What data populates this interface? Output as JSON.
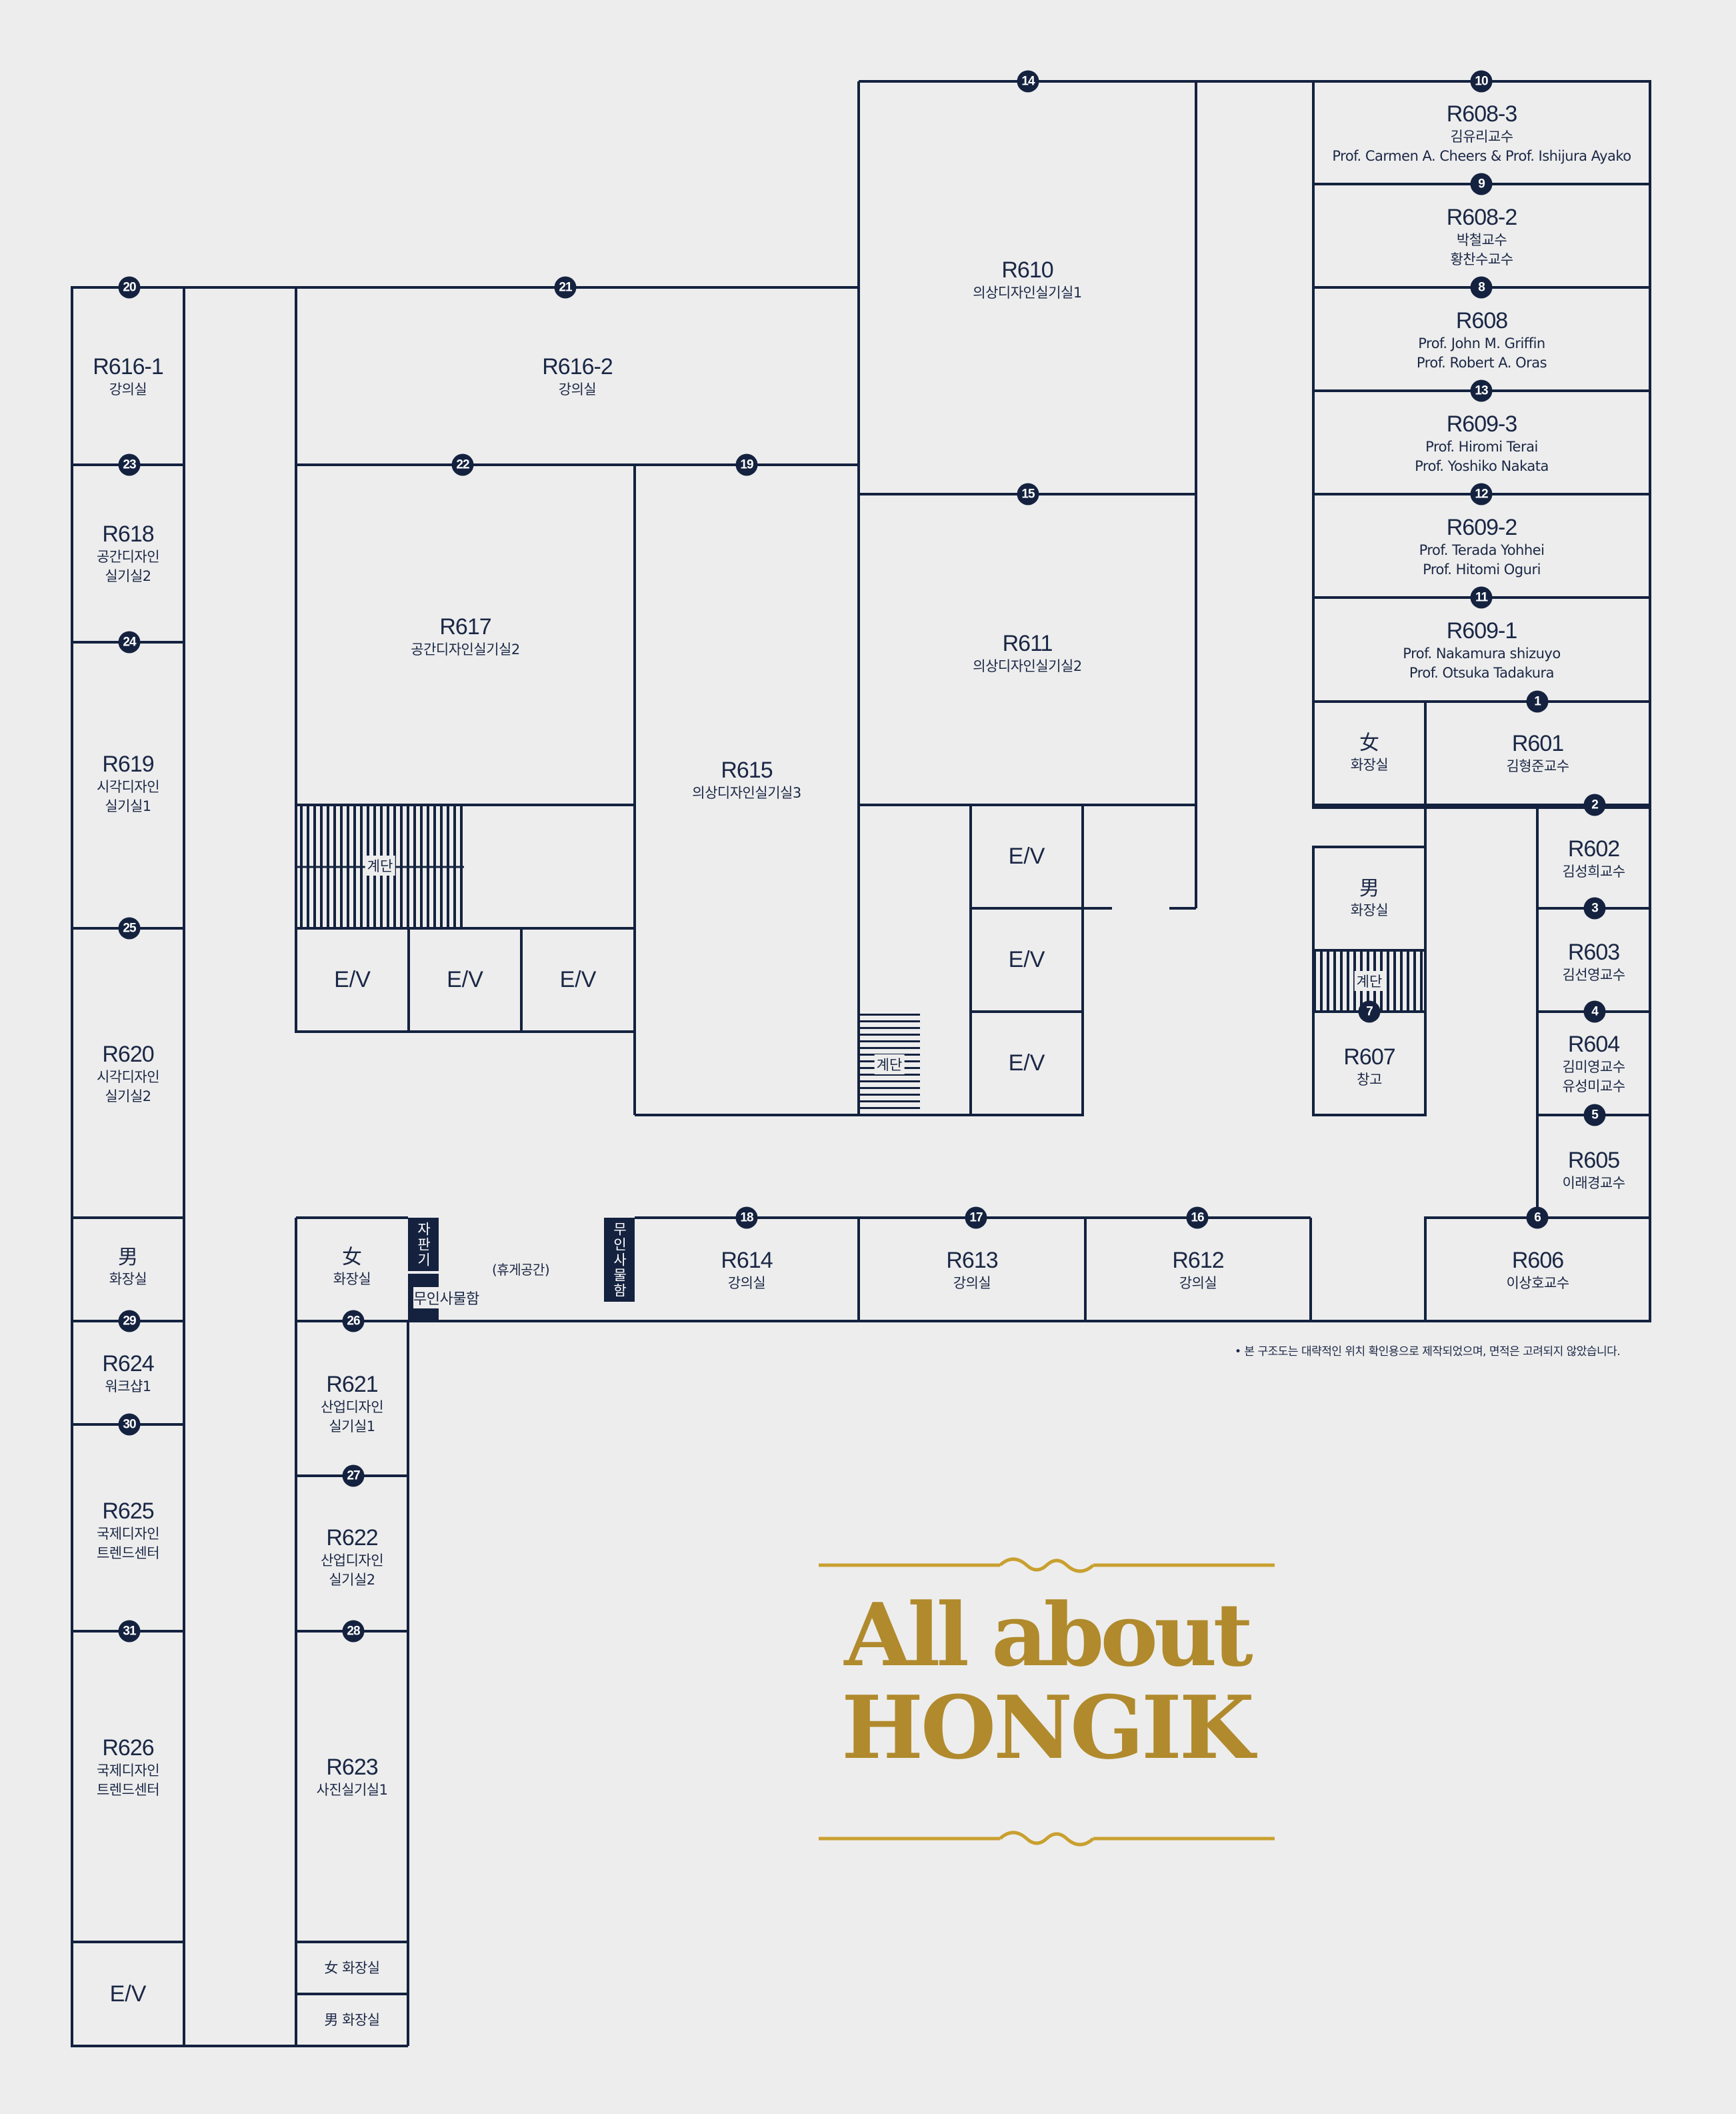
{
  "rooms": {
    "r608_3": {
      "code": "R608-3",
      "sub1": "김유리교수",
      "sub2": "Prof. Carmen A. Cheers & Prof. Ishijura Ayako"
    },
    "r608_2": {
      "code": "R608-2",
      "sub1": "박철교수",
      "sub2": "황찬수교수"
    },
    "r608": {
      "code": "R608",
      "sub1": "Prof. John M. Griffin",
      "sub2": "Prof. Robert A. Oras"
    },
    "r609_3": {
      "code": "R609-3",
      "sub1": "Prof. Hiromi Terai",
      "sub2": "Prof. Yoshiko Nakata"
    },
    "r609_2": {
      "code": "R609-2",
      "sub1": "Prof. Terada Yohhei",
      "sub2": "Prof. Hitomi Oguri"
    },
    "r609_1": {
      "code": "R609-1",
      "sub1": "Prof. Nakamura shizuyo",
      "sub2": "Prof. Otsuka Tadakura"
    },
    "r601": {
      "code": "R601",
      "sub1": "김형준교수"
    },
    "r602": {
      "code": "R602",
      "sub1": "김성희교수"
    },
    "r603": {
      "code": "R603",
      "sub1": "김선영교수"
    },
    "r604": {
      "code": "R604",
      "sub1": "김미영교수",
      "sub2": "유성미교수"
    },
    "r605": {
      "code": "R605",
      "sub1": "이래경교수"
    },
    "r606": {
      "code": "R606",
      "sub1": "이상호교수"
    },
    "r607": {
      "code": "R607",
      "sub1": "창고"
    },
    "r610": {
      "code": "R610",
      "sub1": "의상디자인실기실1"
    },
    "r611": {
      "code": "R611",
      "sub1": "의상디자인실기실2"
    },
    "r615": {
      "code": "R615",
      "sub1": "의상디자인실기실3"
    },
    "r616_1": {
      "code": "R616-1",
      "sub1": "강의실"
    },
    "r616_2": {
      "code": "R616-2",
      "sub1": "강의실"
    },
    "r617": {
      "code": "R617",
      "sub1": "공간디자인실기실2"
    },
    "r618": {
      "code": "R618",
      "sub1": "공간디자인",
      "sub2": "실기실2"
    },
    "r619": {
      "code": "R619",
      "sub1": "시각디자인",
      "sub2": "실기실1"
    },
    "r620": {
      "code": "R620",
      "sub1": "시각디자인",
      "sub2": "실기실2"
    },
    "r612": {
      "code": "R612",
      "sub1": "강의실"
    },
    "r613": {
      "code": "R613",
      "sub1": "강의실"
    },
    "r614": {
      "code": "R614",
      "sub1": "강의실"
    },
    "r621": {
      "code": "R621",
      "sub1": "산업디자인",
      "sub2": "실기실1"
    },
    "r622": {
      "code": "R622",
      "sub1": "산업디자인",
      "sub2": "실기실2"
    },
    "r623": {
      "code": "R623",
      "sub1": "사진실기실1"
    },
    "r624": {
      "code": "R624",
      "sub1": "워크샵1"
    },
    "r625": {
      "code": "R625",
      "sub1": "국제디자인",
      "sub2": "트렌드센터"
    },
    "r626": {
      "code": "R626",
      "sub1": "국제디자인",
      "sub2": "트렌드센터"
    }
  },
  "restrooms": {
    "female_right": {
      "symbol": "女",
      "label": "화장실"
    },
    "male_right": {
      "symbol": "男",
      "label": "화장실"
    },
    "male_left": {
      "symbol": "男",
      "label": "화장실"
    },
    "female_center": {
      "symbol": "女",
      "label": "화장실"
    },
    "female_bottom": {
      "label": "女 화장실"
    },
    "male_bottom": {
      "label": "男 화장실"
    }
  },
  "elevator_label": "E/V",
  "stairs_label": "계단",
  "vending_label": "자판기",
  "locker_label": "무인사물함",
  "lounge_label": "(휴게공간)",
  "markers": [
    "1",
    "2",
    "3",
    "4",
    "5",
    "6",
    "7",
    "8",
    "9",
    "10",
    "11",
    "12",
    "13",
    "14",
    "15",
    "16",
    "17",
    "18",
    "19",
    "20",
    "21",
    "22",
    "23",
    "24",
    "25",
    "26",
    "27",
    "28",
    "29",
    "30",
    "31"
  ],
  "note": "• 본 구조도는 대략적인 위치 확인용으로 제작되었으며, 면적은 고려되지 않았습니다.",
  "brand": {
    "line1": "All about",
    "line2": "HONGIK"
  },
  "colors": {
    "line": "#14223f",
    "gold": "#b08a2c",
    "background": "#ededed"
  }
}
